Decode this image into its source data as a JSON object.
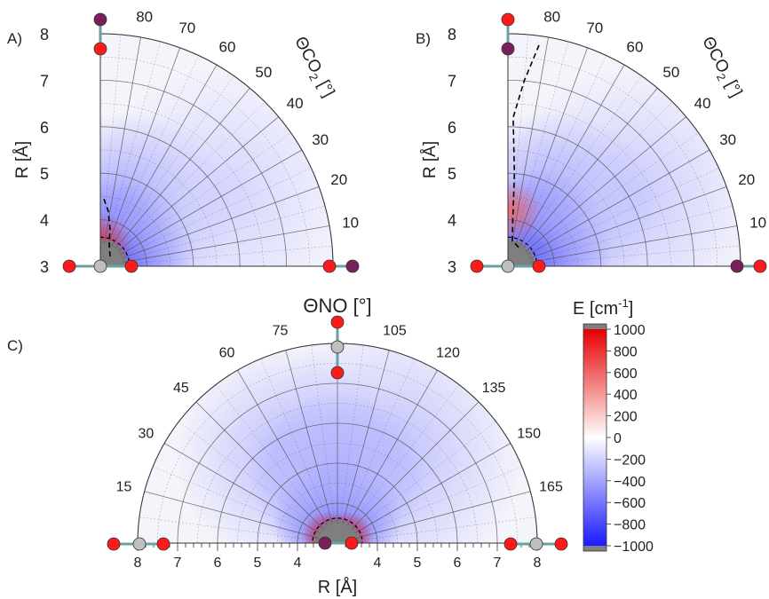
{
  "colors": {
    "neg_max": "#1a1aff",
    "zero": "#ffffff",
    "pos_max": "#e60000",
    "clip": "#7f7f7f",
    "grid": "#555555",
    "oxygen": "#ff1a1a",
    "carbon": "#bfbfbf",
    "nitrogen": "#7a1f5c",
    "bond": "#6aa2a2"
  },
  "colorbar": {
    "title": "E [cm",
    "title_sup": "-1",
    "title_end": "]",
    "ticks": [
      "1000",
      "800",
      "600",
      "400",
      "200",
      "0",
      "−200",
      "−400",
      "−600",
      "−800",
      "−1000"
    ]
  },
  "chart_data": [
    {
      "panel": "A)",
      "type": "heatmap",
      "projection": "polar-quarter",
      "ylabel": "R [Å]",
      "angle_label": "ΘCO",
      "angle_label_sub": "2",
      "angle_label_end": " [°]",
      "r_range": [
        3,
        8
      ],
      "r_ticks": [
        "3",
        "4",
        "5",
        "6",
        "7",
        "8"
      ],
      "angle_range": [
        0,
        90
      ],
      "angle_ticks": [
        "10",
        "20",
        "30",
        "40",
        "50",
        "60",
        "70",
        "80"
      ],
      "grid": true,
      "blobs": [
        {
          "angle": 35,
          "r": 3.55,
          "value": -1000
        },
        {
          "angle": 60,
          "r": 4.3,
          "value": -500
        },
        {
          "angle": 30,
          "r": 6.0,
          "value": -200
        }
      ],
      "repulsive": {
        "angle": 88,
        "r": 3.5,
        "value": 800
      },
      "dashed_path": [
        [
          87,
          4.45
        ],
        [
          82,
          4.2
        ],
        [
          76,
          3.85
        ],
        [
          65,
          3.45
        ],
        [
          45,
          3.3
        ]
      ]
    },
    {
      "panel": "B)",
      "type": "heatmap",
      "projection": "polar-quarter",
      "ylabel": "R [Å]",
      "angle_label": "ΘCO",
      "angle_label_sub": "2",
      "angle_label_end": " [°]",
      "r_range": [
        3,
        8
      ],
      "r_ticks": [
        "3",
        "4",
        "5",
        "6",
        "7",
        "8"
      ],
      "angle_range": [
        0,
        90
      ],
      "angle_ticks": [
        "10",
        "20",
        "30",
        "40",
        "50",
        "60",
        "70",
        "80"
      ],
      "grid": true,
      "blobs": [
        {
          "angle": 35,
          "r": 3.8,
          "value": -1000
        },
        {
          "angle": 50,
          "r": 4.5,
          "value": -500
        },
        {
          "angle": 30,
          "r": 6.0,
          "value": -250
        }
      ],
      "repulsive": {
        "angle": 87,
        "r": 4.2,
        "value": 600
      },
      "dashed_path": [
        [
          82,
          7.8
        ],
        [
          85,
          7.0
        ],
        [
          88,
          6.2
        ],
        [
          86,
          5.0
        ],
        [
          84,
          4.0
        ],
        [
          80,
          3.55
        ],
        [
          70,
          3.5
        ],
        [
          55,
          3.45
        ]
      ]
    },
    {
      "panel": "C)",
      "type": "heatmap",
      "projection": "polar-half",
      "xlabel": "R [Å]",
      "angle_label": "ΘNO [°]",
      "r_range": [
        3,
        8
      ],
      "r_ticks_left": [
        "8",
        "7",
        "6",
        "5",
        "4"
      ],
      "r_ticks_right": [
        "4",
        "5",
        "6",
        "7",
        "8"
      ],
      "angle_range": [
        0,
        180
      ],
      "angle_ticks": [
        "15",
        "30",
        "45",
        "60",
        "75",
        "105",
        "120",
        "135",
        "150",
        "165"
      ],
      "grid": true,
      "blobs": [
        {
          "angle": 90,
          "r": 3.6,
          "value": -1000
        },
        {
          "angle": 90,
          "r": 4.6,
          "value": -600
        },
        {
          "angle": 60,
          "r": 5.5,
          "value": -300
        },
        {
          "angle": 120,
          "r": 5.5,
          "value": -300
        }
      ],
      "repulsive_left": {
        "angle": 150,
        "r": 3.3,
        "value": 1000
      },
      "repulsive_right": {
        "angle": 30,
        "r": 3.3,
        "value": 1000
      }
    }
  ]
}
